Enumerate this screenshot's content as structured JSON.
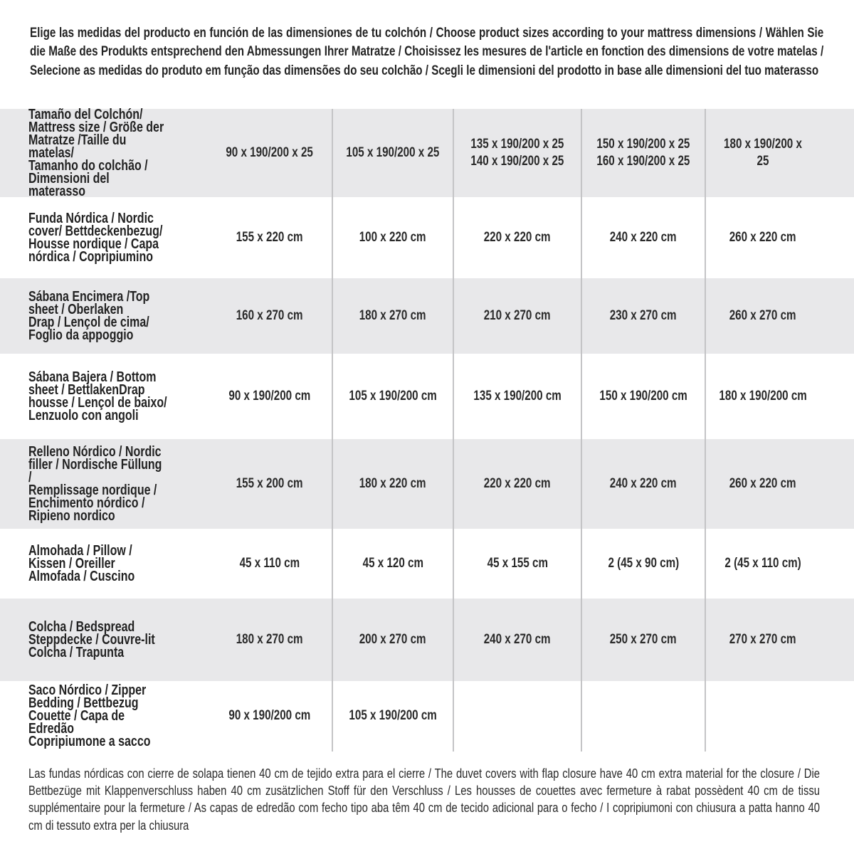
{
  "intro": "Elige las medidas del producto en función de las dimensiones de tu colchón / Choose product sizes according to your mattress dimensions / Wählen Sie die Maße des Produkts entsprechend den Abmessungen Ihrer Matratze / Choisissez les mesures de l'article en fonction des dimensions de votre matelas / Selecione as medidas do produto em função das dimensões do seu colchão / Scegli le dimensioni del prodotto in base alle dimensioni del tuo materasso",
  "rows": [
    {
      "label": "Tamaño del Colchón/\nMattress size / Größe der\nMatratze /Taille du matelas/\nTamanho do colchão /\nDimensioni del materasso",
      "values": [
        "90 x 190/200 x 25",
        "105 x 190/200 x 25",
        "135 x 190/200 x 25\n140 x 190/200 x 25",
        "150 x 190/200 x 25\n160 x 190/200 x 25",
        "180 x 190/200 x 25"
      ]
    },
    {
      "label": "Funda Nórdica /   Nordic\ncover/ Bettdeckenbezug/\nHousse nordique  / Capa\nnórdica / Copripiumino",
      "values": [
        "155 x 220 cm",
        "100 x 220 cm",
        "220 x 220 cm",
        "240 x 220 cm",
        "260 x 220 cm"
      ]
    },
    {
      "label": "Sábana Encimera /Top\nsheet / Oberlaken\nDrap / Lençol de cima/\nFoglio da appoggio",
      "values": [
        "160 x 270 cm",
        "180 x 270 cm",
        "210 x 270 cm",
        "230 x 270 cm",
        "260 x 270 cm"
      ]
    },
    {
      "label": "Sábana Bajera / Bottom\nsheet / BettlakenDrap\nhousse / Lençol de baixo/\nLenzuolo con angoli",
      "values": [
        "90 x 190/200 cm",
        "105 x 190/200 cm",
        "135 x 190/200 cm",
        "150 x 190/200 cm",
        "180 x 190/200 cm"
      ]
    },
    {
      "label": "Relleno Nórdico / Nordic\nfiller / Nordische Füllung /\nRemplissage nordique /\nEnchimento nórdico /\nRipieno nordico",
      "values": [
        "155 x 200 cm",
        "180 x 220 cm",
        "220 x 220 cm",
        "240 x 220 cm",
        "260 x 220 cm"
      ]
    },
    {
      "label": "Almohada  / Pillow /\nKissen / Oreiller\nAlmofada / Cuscino",
      "values": [
        "45 x 110 cm",
        "45 x 120 cm",
        "45 x 155 cm",
        "2 (45 x 90 cm)",
        "2 (45 x 110 cm)"
      ]
    },
    {
      "label": "Colcha / Bedspread\nSteppdecke / Couvre-lit\nColcha / Trapunta",
      "values": [
        "180 x 270 cm",
        "200 x 270 cm",
        "240 x 270 cm",
        "250 x 270 cm",
        "270 x 270 cm"
      ]
    },
    {
      "label": "Saco Nórdico / Zipper\nBedding / Bettbezug\nCouette  / Capa de Edredão\nCopripiumone a sacco",
      "values": [
        "90 x 190/200 cm",
        "105 x 190/200 cm",
        "",
        "",
        ""
      ]
    }
  ],
  "footer": "Las fundas nórdicas con cierre de solapa tienen 40 cm de tejido extra para el cierre  / The duvet covers with flap closure have 40 cm extra material for the closure / Die Bettbezüge mit Klappenverschluss haben 40 cm zusätzlichen Stoff für den Verschluss / Les housses de couettes avec fermeture à rabat possèdent 40 cm de tissu supplémentaire pour la fermeture / As capas de edredão com fecho tipo aba têm 40 cm de tecido adicional para o fecho / I copripiumoni con chiusura a patta hanno 40 cm di tessuto extra per la chiusura"
}
